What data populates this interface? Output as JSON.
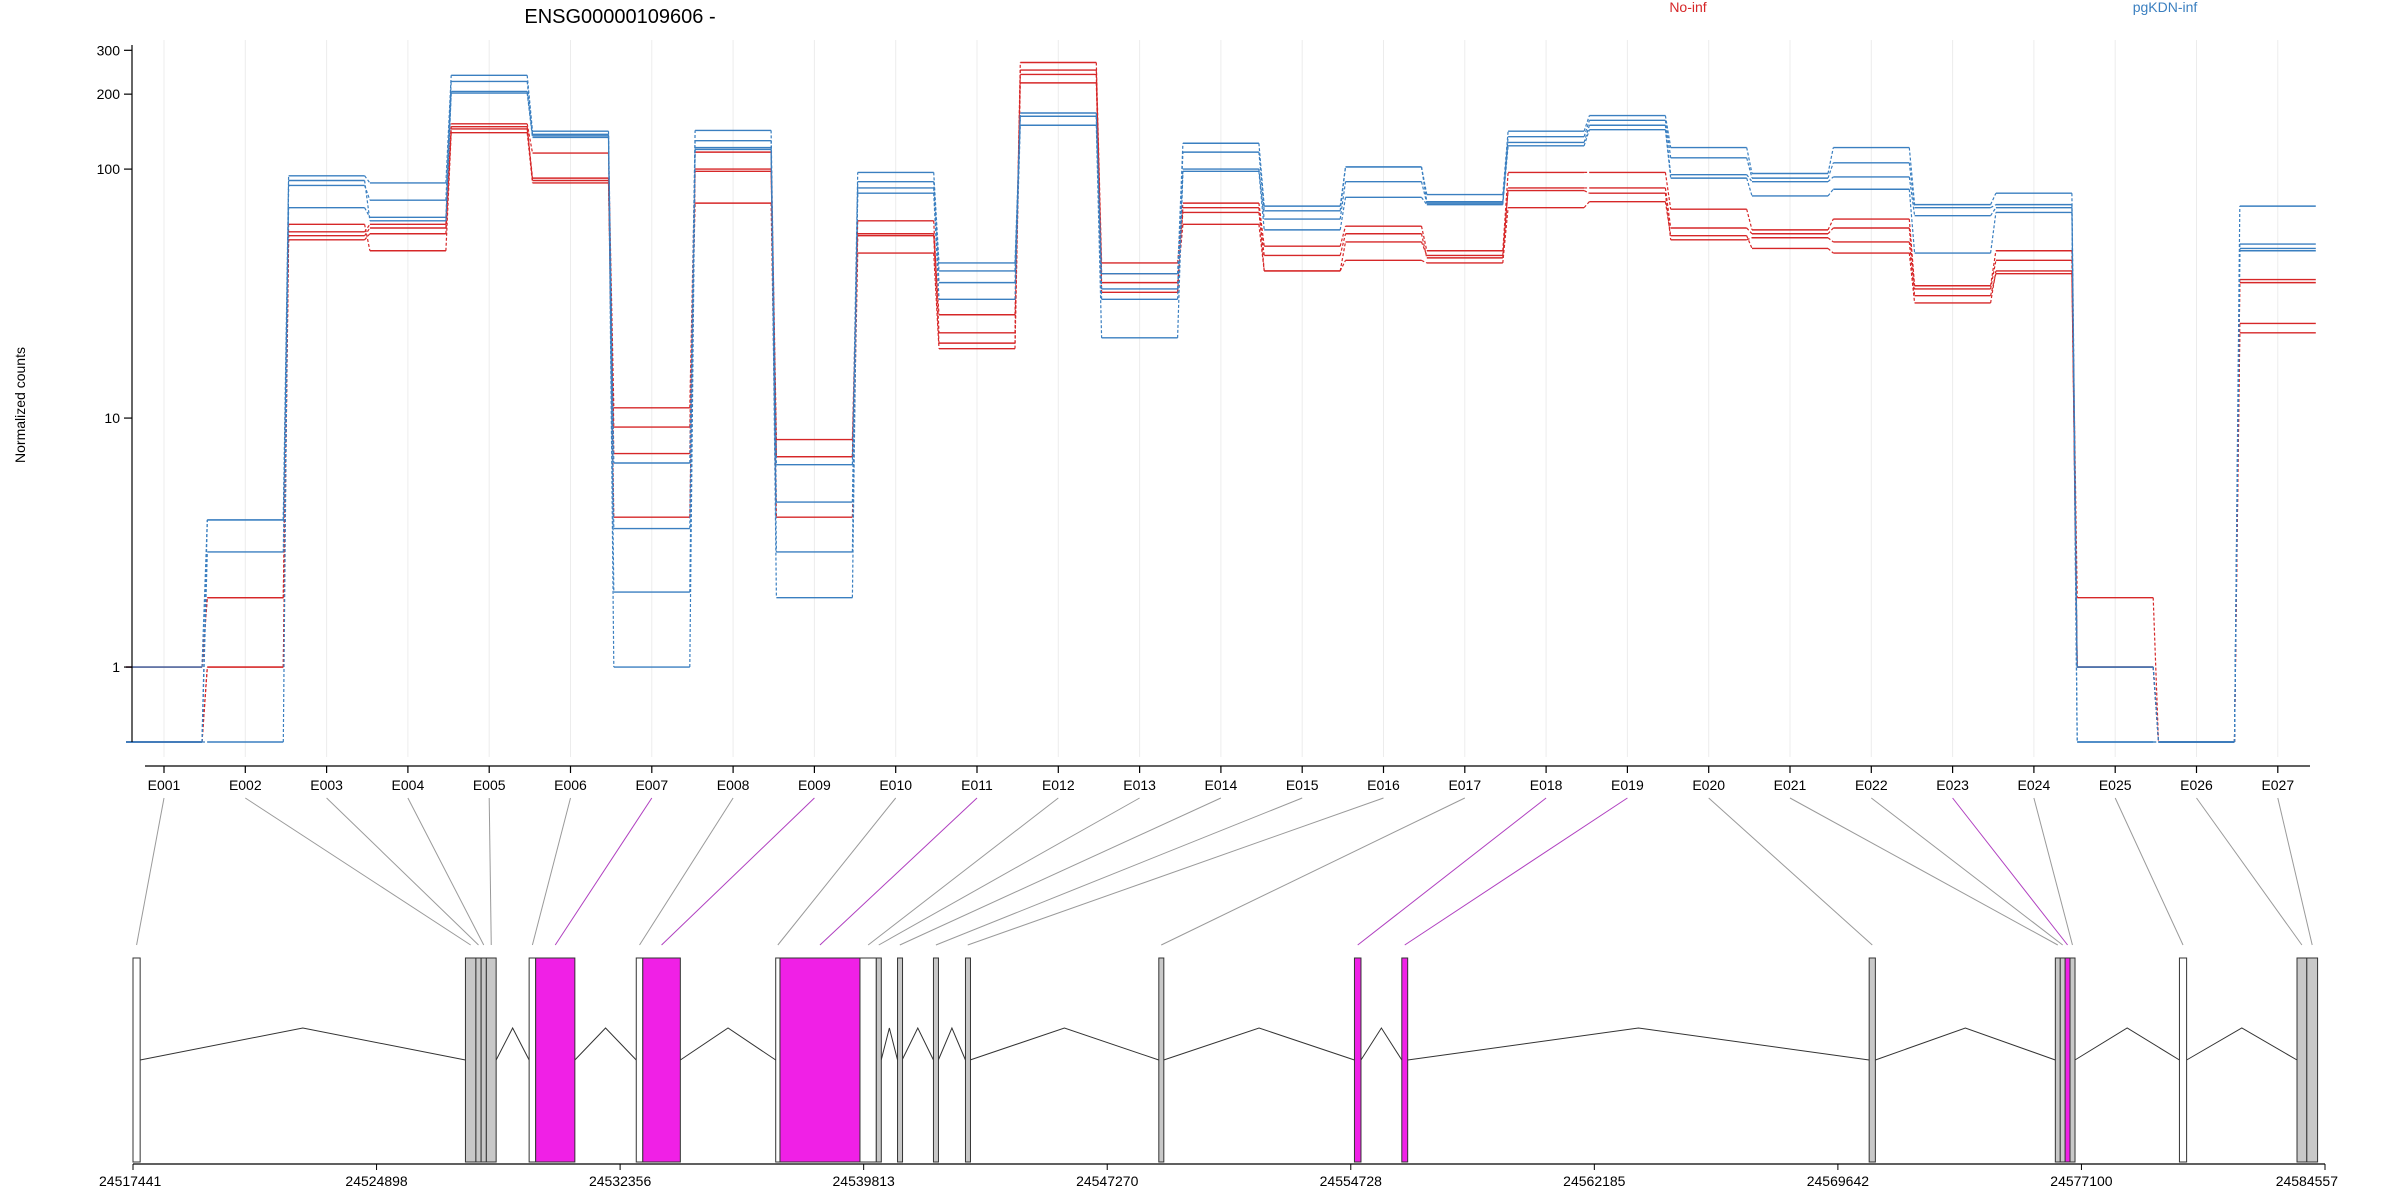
{
  "chart_data": {
    "type": "line",
    "title": "ENSG00000109606 -",
    "ylabel": "Normalized counts",
    "yscale": "log",
    "ylim": [
      0.5,
      330
    ],
    "yticks": [
      1,
      10,
      100,
      200,
      300
    ],
    "categories": [
      "E001",
      "E002",
      "E003",
      "E004",
      "E005",
      "E006",
      "E007",
      "E008",
      "E009",
      "E010",
      "E011",
      "E012",
      "E013",
      "E014",
      "E015",
      "E016",
      "E017",
      "E018",
      "E019",
      "E020",
      "E021",
      "E022",
      "E023",
      "E024",
      "E025",
      "E026",
      "E027"
    ],
    "legend_position": "top",
    "grid": "vertical",
    "groups": [
      {
        "name": "No-inf",
        "color": "#d62728"
      },
      {
        "name": "pgKDN-inf",
        "color": "#3a7fc0"
      }
    ],
    "series": [
      {
        "group": "No-inf",
        "values": [
          1.0,
          1.9,
          56,
          60,
          152,
          116,
          11,
          117,
          8.2,
          62,
          22,
          268,
          42,
          73,
          49,
          59,
          47,
          97,
          97,
          69,
          57,
          63,
          34,
          47,
          1.9,
          0.5,
          36
        ]
      },
      {
        "group": "No-inf",
        "values": [
          0.5,
          1.0,
          52,
          55,
          145,
          90,
          7.2,
          100,
          7.0,
          55,
          26,
          240,
          38,
          67,
          45,
          55,
          44,
          84,
          84,
          58,
          55,
          58,
          33,
          43,
          1.0,
          0.5,
          35
        ]
      },
      {
        "group": "No-inf",
        "values": [
          0.5,
          1.0,
          60,
          47,
          140,
          88,
          9.2,
          73,
          4.0,
          46,
          19,
          222,
          35,
          60,
          39,
          43,
          42,
          70,
          74,
          54,
          48,
          46,
          29,
          39,
          1.0,
          0.5,
          24
        ]
      },
      {
        "group": "No-inf",
        "values": [
          1.0,
          1.9,
          54,
          58,
          148,
          92,
          4.0,
          98,
          7.0,
          54,
          20,
          250,
          32,
          70,
          39,
          51,
          45,
          82,
          80,
          52,
          53,
          51,
          31,
          38,
          1.0,
          0.5,
          22
        ]
      },
      {
        "group": "pgKDN-inf",
        "values": [
          1.0,
          3.9,
          94,
          88,
          238,
          142,
          6.6,
          143,
          6.5,
          97,
          42,
          168,
          38,
          127,
          71,
          102,
          79,
          142,
          164,
          122,
          96,
          122,
          72,
          80,
          1.0,
          0.5,
          71
        ]
      },
      {
        "group": "pgKDN-inf",
        "values": [
          0.5,
          2.9,
          86,
          75,
          225,
          138,
          3.6,
          130,
          2.9,
          89,
          39,
          163,
          33,
          117,
          68,
          102,
          74,
          135,
          157,
          111,
          92,
          106,
          70,
          72,
          1.0,
          0.5,
          50
        ]
      },
      {
        "group": "pgKDN-inf",
        "values": [
          0.5,
          3.9,
          70,
          64,
          205,
          136,
          1.0,
          122,
          1.9,
          84,
          35,
          163,
          30,
          100,
          63,
          89,
          73,
          128,
          150,
          95,
          89,
          93,
          65,
          70,
          0.5,
          0.5,
          48
        ]
      },
      {
        "group": "pgKDN-inf",
        "values": [
          0.5,
          0.5,
          90,
          62,
          202,
          134,
          2.0,
          120,
          4.6,
          80,
          30,
          150,
          21,
          98,
          57,
          77,
          72,
          124,
          144,
          92,
          78,
          83,
          46,
          67,
          0.5,
          0.5,
          47
        ]
      }
    ],
    "genome": {
      "tick_labels": [
        "24517441",
        "24524898",
        "24532356",
        "24539813",
        "24547270",
        "24554728",
        "24562185",
        "24569642",
        "24577100",
        "24584557"
      ],
      "range": [
        24517441,
        24584557
      ],
      "exon_colors": {
        "normal": "#c8c8c8",
        "significant": "#f020e6"
      },
      "exons": [
        {
          "id": "E001",
          "start": 24517441,
          "end": 24517660,
          "significant": false,
          "fill": false
        },
        {
          "id": "E002",
          "start": 24527620,
          "end": 24527940,
          "significant": false,
          "fill": true
        },
        {
          "id": "E003",
          "start": 24527940,
          "end": 24528100,
          "significant": false,
          "fill": true
        },
        {
          "id": "E004",
          "start": 24528100,
          "end": 24528260,
          "significant": false,
          "fill": true
        },
        {
          "id": "E005",
          "start": 24528260,
          "end": 24528560,
          "significant": false,
          "fill": true
        },
        {
          "id": "E006",
          "start": 24529570,
          "end": 24529770,
          "significant": false,
          "fill": false
        },
        {
          "id": "E007",
          "start": 24529770,
          "end": 24530970,
          "significant": true,
          "fill": true
        },
        {
          "id": "E008",
          "start": 24532850,
          "end": 24533050,
          "significant": false,
          "fill": false
        },
        {
          "id": "E009",
          "start": 24533050,
          "end": 24534200,
          "significant": true,
          "fill": true
        },
        {
          "id": "E010",
          "start": 24537120,
          "end": 24537250,
          "significant": false,
          "fill": false
        },
        {
          "id": "E011",
          "start": 24537250,
          "end": 24539700,
          "significant": true,
          "fill": true
        },
        {
          "id": "E012",
          "start": 24539700,
          "end": 24540200,
          "significant": false,
          "fill": false
        },
        {
          "id": "E013",
          "start": 24540200,
          "end": 24540350,
          "significant": false,
          "fill": true
        },
        {
          "id": "E014",
          "start": 24540850,
          "end": 24540990,
          "significant": false,
          "fill": true
        },
        {
          "id": "E015",
          "start": 24541950,
          "end": 24542100,
          "significant": false,
          "fill": true
        },
        {
          "id": "E016",
          "start": 24542930,
          "end": 24543070,
          "significant": false,
          "fill": true
        },
        {
          "id": "E017",
          "start": 24548850,
          "end": 24549000,
          "significant": false,
          "fill": true
        },
        {
          "id": "E018",
          "start": 24554840,
          "end": 24555040,
          "significant": true,
          "fill": true
        },
        {
          "id": "E019",
          "start": 24556290,
          "end": 24556470,
          "significant": true,
          "fill": true
        },
        {
          "id": "E020",
          "start": 24570600,
          "end": 24570790,
          "significant": false,
          "fill": true
        },
        {
          "id": "E021",
          "start": 24576300,
          "end": 24576450,
          "significant": false,
          "fill": true
        },
        {
          "id": "E022",
          "start": 24576450,
          "end": 24576600,
          "significant": false,
          "fill": true
        },
        {
          "id": "E023",
          "start": 24576600,
          "end": 24576750,
          "significant": true,
          "fill": true
        },
        {
          "id": "E024",
          "start": 24576750,
          "end": 24576900,
          "significant": false,
          "fill": true
        },
        {
          "id": "E025",
          "start": 24580100,
          "end": 24580320,
          "significant": false,
          "fill": false
        },
        {
          "id": "E026",
          "start": 24583700,
          "end": 24584000,
          "significant": false,
          "fill": true
        },
        {
          "id": "E027",
          "start": 24584000,
          "end": 24584330,
          "significant": false,
          "fill": true
        }
      ]
    }
  }
}
